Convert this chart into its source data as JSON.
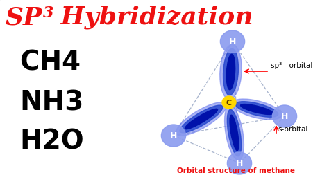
{
  "title_sp": "SP",
  "title_sup": "3",
  "title_hyb": " Hybridization",
  "title_color": "#EE1111",
  "bg_color": "#1a1a2e",
  "molecules": [
    "CH4",
    "NH3",
    "H2O"
  ],
  "molecule_color": "#000000",
  "center_label": "C",
  "center_color": "#FFD700",
  "h_label": "H",
  "h_color": "#8899EE",
  "sp3_label": "sp³ - orbital",
  "s_label": "s-orbital",
  "caption": "Orbital structure of methane",
  "caption_color": "#EE1111",
  "orbital_dark": "#0011AA",
  "orbital_mid": "#2244CC",
  "orbital_light": "#6677EE",
  "dashed_color": "#8899BB",
  "panel_bg": "#1C1C3A"
}
